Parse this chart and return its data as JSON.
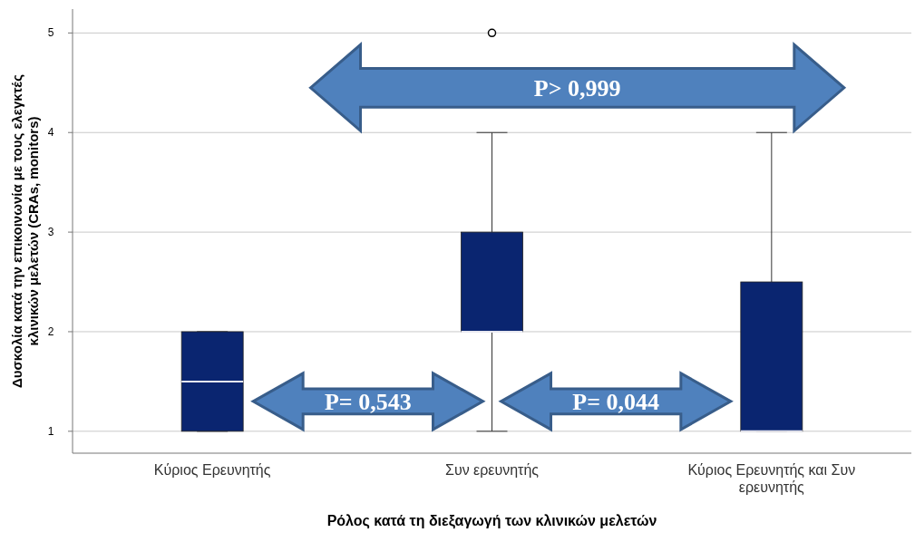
{
  "chart_data": {
    "type": "box",
    "xlabel": "Ρόλος κατά τη διεξαγωγή των κλινικών μελετών",
    "ylabel": "Δυσκολία κατά την επικοινωνία με τους ελεγκτές κλινικών μελετών (CRAs, monitors)",
    "categories": [
      "Κύριος Ερευνητής",
      "Συν ερευνητής",
      "Κύριος Ερευνητής και Συν ερευνητής"
    ],
    "series": [
      {
        "color": "#0a2570",
        "boxes": [
          {
            "low": 1,
            "q1": 1,
            "median": 1.5,
            "q3": 2,
            "high": 2
          },
          {
            "low": 1,
            "q1": 2,
            "median": 2,
            "q3": 3,
            "high": 4,
            "outliers": [
              5
            ]
          },
          {
            "low": 1,
            "q1": 1,
            "median": 1,
            "q3": 2.5,
            "high": 4
          }
        ]
      }
    ],
    "ylim": [
      0.78,
      5.24
    ],
    "yticks": [
      1,
      2,
      3,
      4,
      5
    ],
    "grid": "y",
    "annotations": [
      "P> 0,999",
      "P= 0,543",
      "P= 0,044"
    ]
  }
}
